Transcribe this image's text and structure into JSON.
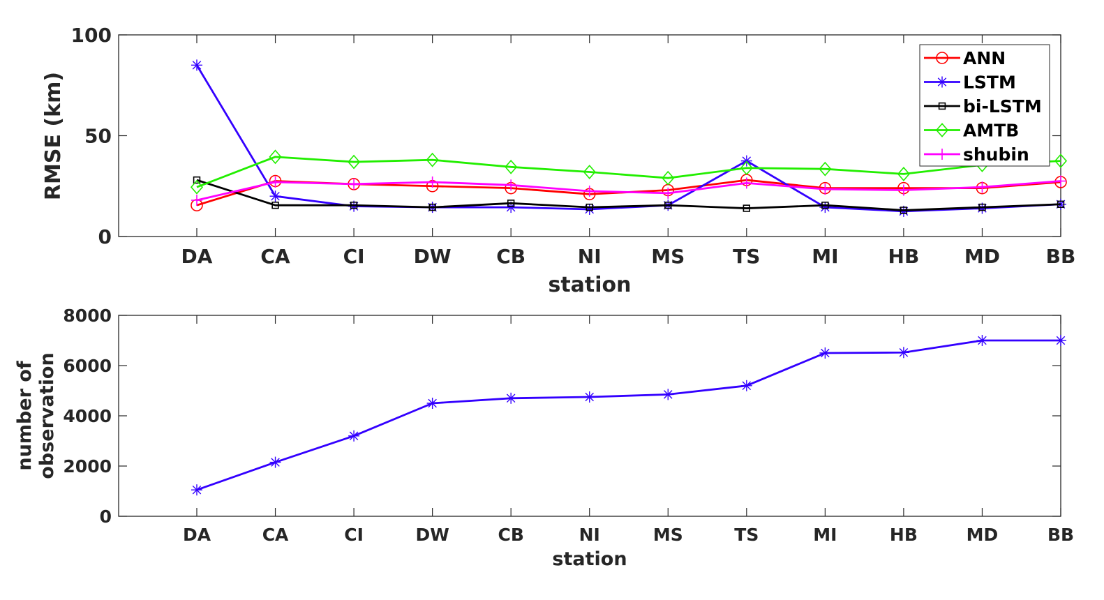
{
  "chart_data": [
    {
      "type": "line",
      "categories": [
        "DA",
        "CA",
        "CI",
        "DW",
        "CB",
        "NI",
        "MS",
        "TS",
        "MI",
        "HB",
        "MD",
        "BB"
      ],
      "xlabel": "station",
      "ylabel": "RMSE (km)",
      "ylim": [
        0,
        100
      ],
      "yticks": [
        0,
        50,
        100
      ],
      "grid": false,
      "legend_position": "top-right",
      "series": [
        {
          "name": "ANN",
          "color": "#ff0000",
          "marker": "circle",
          "values": [
            15.5,
            27.5,
            26,
            25,
            24,
            21,
            23,
            28,
            24,
            24,
            24,
            27
          ]
        },
        {
          "name": "LSTM",
          "color": "#3300ff",
          "marker": "asterisk",
          "values": [
            85,
            20,
            15,
            14.5,
            14.5,
            13.5,
            15.5,
            37.5,
            14.5,
            12.5,
            14,
            16
          ]
        },
        {
          "name": "bi-LSTM",
          "color": "#000000",
          "marker": "square",
          "values": [
            28,
            15.5,
            15.5,
            14.5,
            16.5,
            14.5,
            15.5,
            14,
            15.5,
            13,
            14.5,
            16
          ]
        },
        {
          "name": "AMTB",
          "color": "#22ee00",
          "marker": "diamond",
          "values": [
            24.5,
            39.5,
            37,
            38,
            34.5,
            32,
            29,
            34,
            33.5,
            31,
            35.5,
            37.5
          ]
        },
        {
          "name": "shubin",
          "color": "#ff00ff",
          "marker": "plus",
          "values": [
            18,
            27,
            26,
            27,
            25.5,
            22.5,
            21.5,
            26.5,
            23.5,
            23,
            24.5,
            27.5
          ]
        }
      ]
    },
    {
      "type": "line",
      "categories": [
        "DA",
        "CA",
        "CI",
        "DW",
        "CB",
        "NI",
        "MS",
        "TS",
        "MI",
        "HB",
        "MD",
        "BB"
      ],
      "xlabel": "station",
      "ylabel": [
        "number of",
        "observation"
      ],
      "ylim": [
        0,
        8000
      ],
      "yticks": [
        0,
        2000,
        4000,
        6000,
        8000
      ],
      "grid": false,
      "series": [
        {
          "color": "#3300ff",
          "marker": "asterisk",
          "values": [
            1050,
            2150,
            3200,
            4500,
            4700,
            4750,
            4850,
            5200,
            6500,
            6520,
            7000,
            7000
          ]
        }
      ]
    }
  ]
}
